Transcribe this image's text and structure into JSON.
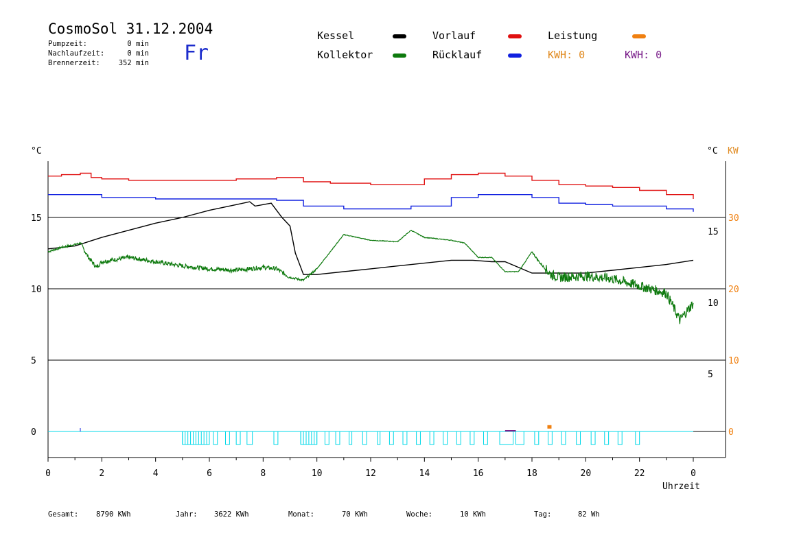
{
  "header": {
    "title": "CosmoSol 31.12.2004",
    "day": "Fr",
    "stats": [
      {
        "label": "Pumpzeit:",
        "value": "0 min"
      },
      {
        "label": "Nachlaufzeit:",
        "value": "0 min"
      },
      {
        "label": "Brennerzeit:",
        "value": "352 min"
      }
    ]
  },
  "legend": {
    "kessel": "Kessel",
    "kollektor": "Kollektor",
    "vorlauf": "Vorlauf",
    "ruecklauf": "Rücklauf",
    "leistung": "Leistung",
    "kwh1": "KWH: 0",
    "kwh2": "KWH: 0"
  },
  "colors": {
    "kessel": "#000000",
    "kollektor": "#0e7a0e",
    "vorlauf": "#e01010",
    "ruecklauf": "#1020e0",
    "leistung": "#f08010",
    "kwh2": "#7a1f8a",
    "pump": "#00d8e8"
  },
  "axes": {
    "left_unit": "°C",
    "right_unit_c": "°C",
    "right_unit_kw": "KW",
    "x_label": "Uhrzeit"
  },
  "footer": [
    {
      "label": "Gesamt:",
      "value": "8790 KWh"
    },
    {
      "label": "Jahr:",
      "value": "3622 KWh"
    },
    {
      "label": "Monat:",
      "value": "70 KWh"
    },
    {
      "label": "Woche:",
      "value": "10 KWh"
    },
    {
      "label": "Tag:",
      "value": "82 Wh"
    }
  ],
  "chart_data": {
    "type": "line",
    "title": "CosmoSol 31.12.2004",
    "xlabel": "Uhrzeit",
    "ylabel": "°C",
    "xlim": [
      0,
      24
    ],
    "x_tick_labels": [
      "0",
      "2",
      "4",
      "6",
      "8",
      "10",
      "12",
      "14",
      "16",
      "18",
      "20",
      "22",
      "0"
    ],
    "left_axis": {
      "ticks": [
        0,
        5,
        10,
        15
      ],
      "ylim": [
        -1.7,
        19
      ]
    },
    "right_axis_c": {
      "ticks": [
        5,
        10,
        15
      ]
    },
    "right_axis_kw": {
      "ticks": [
        0,
        10,
        20,
        30
      ]
    },
    "grid": "horizontal",
    "series": [
      {
        "name": "Vorlauf",
        "x": [
          0,
          0.5,
          1.2,
          1.6,
          2,
          3,
          5,
          7,
          8.5,
          9.5,
          10.5,
          12,
          13,
          14,
          15,
          16,
          17,
          18,
          19,
          20,
          21,
          22,
          23,
          24
        ],
        "y": [
          17.9,
          18.0,
          18.1,
          17.8,
          17.7,
          17.6,
          17.6,
          17.7,
          17.8,
          17.5,
          17.4,
          17.3,
          17.3,
          17.7,
          18.0,
          18.1,
          17.9,
          17.6,
          17.3,
          17.2,
          17.1,
          16.9,
          16.6,
          16.3
        ]
      },
      {
        "name": "Rücklauf",
        "x": [
          0,
          1.2,
          2,
          4,
          7,
          8.5,
          9.5,
          11,
          12,
          13.5,
          15,
          16,
          17,
          18,
          19,
          20,
          21,
          22,
          23,
          24
        ],
        "y": [
          16.6,
          16.6,
          16.4,
          16.3,
          16.3,
          16.2,
          15.8,
          15.6,
          15.6,
          15.8,
          16.4,
          16.6,
          16.6,
          16.4,
          16.0,
          15.9,
          15.8,
          15.8,
          15.6,
          15.4
        ]
      },
      {
        "name": "Kessel",
        "x": [
          0,
          1,
          2,
          3,
          4,
          5,
          6,
          7,
          7.5,
          7.7,
          8,
          8.3,
          8.7,
          9,
          9.2,
          9.5,
          10,
          11,
          12,
          13,
          14,
          15,
          15.8,
          16.5,
          17,
          18,
          19,
          20,
          21,
          22,
          23,
          24
        ],
        "y": [
          12.8,
          13.0,
          13.6,
          14.1,
          14.6,
          15.0,
          15.5,
          15.9,
          16.1,
          15.8,
          15.9,
          16.0,
          15.0,
          14.4,
          12.5,
          11.0,
          11.0,
          11.2,
          11.4,
          11.6,
          11.8,
          12.0,
          12.0,
          11.9,
          11.9,
          11.1,
          11.1,
          11.1,
          11.3,
          11.5,
          11.7,
          12.0
        ]
      },
      {
        "name": "Kollektor",
        "x": [
          0,
          0.5,
          1,
          1.2,
          1.5,
          1.8,
          2,
          3,
          4,
          5,
          6,
          7,
          8,
          8.5,
          9,
          9.5,
          10,
          10.5,
          11,
          11.5,
          12,
          13,
          13.5,
          14,
          15,
          15.5,
          16,
          16.5,
          17,
          17.5,
          18,
          18.3,
          18.7,
          19,
          20,
          21,
          22,
          23,
          23.5,
          24
        ],
        "y": [
          12.6,
          12.9,
          13.1,
          13.2,
          12.2,
          11.5,
          11.9,
          12.2,
          11.9,
          11.6,
          11.4,
          11.3,
          11.5,
          11.4,
          10.8,
          10.6,
          11.4,
          12.6,
          13.8,
          13.6,
          13.4,
          13.3,
          14.1,
          13.6,
          13.4,
          13.2,
          12.2,
          12.2,
          11.2,
          11.2,
          12.6,
          11.8,
          11.0,
          10.8,
          10.9,
          10.7,
          10.2,
          9.7,
          7.8,
          9.0
        ]
      }
    ],
    "pump_activity": {
      "name": "Pumpe",
      "intervals": [
        [
          5.0,
          6.0
        ],
        [
          6.15,
          6.3
        ],
        [
          6.6,
          6.75
        ],
        [
          7.0,
          7.15
        ],
        [
          7.4,
          7.6
        ],
        [
          8.4,
          8.55
        ],
        [
          9.4,
          10.0
        ],
        [
          10.3,
          10.45
        ],
        [
          10.7,
          10.85
        ],
        [
          11.2,
          11.3
        ],
        [
          11.7,
          11.85
        ],
        [
          12.25,
          12.35
        ],
        [
          12.7,
          12.85
        ],
        [
          13.2,
          13.35
        ],
        [
          13.7,
          13.85
        ],
        [
          14.2,
          14.35
        ],
        [
          14.7,
          14.85
        ],
        [
          15.2,
          15.35
        ],
        [
          15.7,
          15.85
        ],
        [
          16.2,
          16.35
        ],
        [
          16.8,
          17.3
        ],
        [
          17.4,
          17.7
        ],
        [
          18.1,
          18.25
        ],
        [
          18.6,
          18.75
        ],
        [
          19.1,
          19.25
        ],
        [
          19.65,
          19.8
        ],
        [
          20.2,
          20.35
        ],
        [
          20.7,
          20.85
        ],
        [
          21.2,
          21.35
        ],
        [
          21.85,
          22.0
        ]
      ]
    },
    "leistung_kw": {
      "name": "Leistung",
      "x": [
        18.65
      ],
      "y": [
        0.5
      ]
    }
  }
}
